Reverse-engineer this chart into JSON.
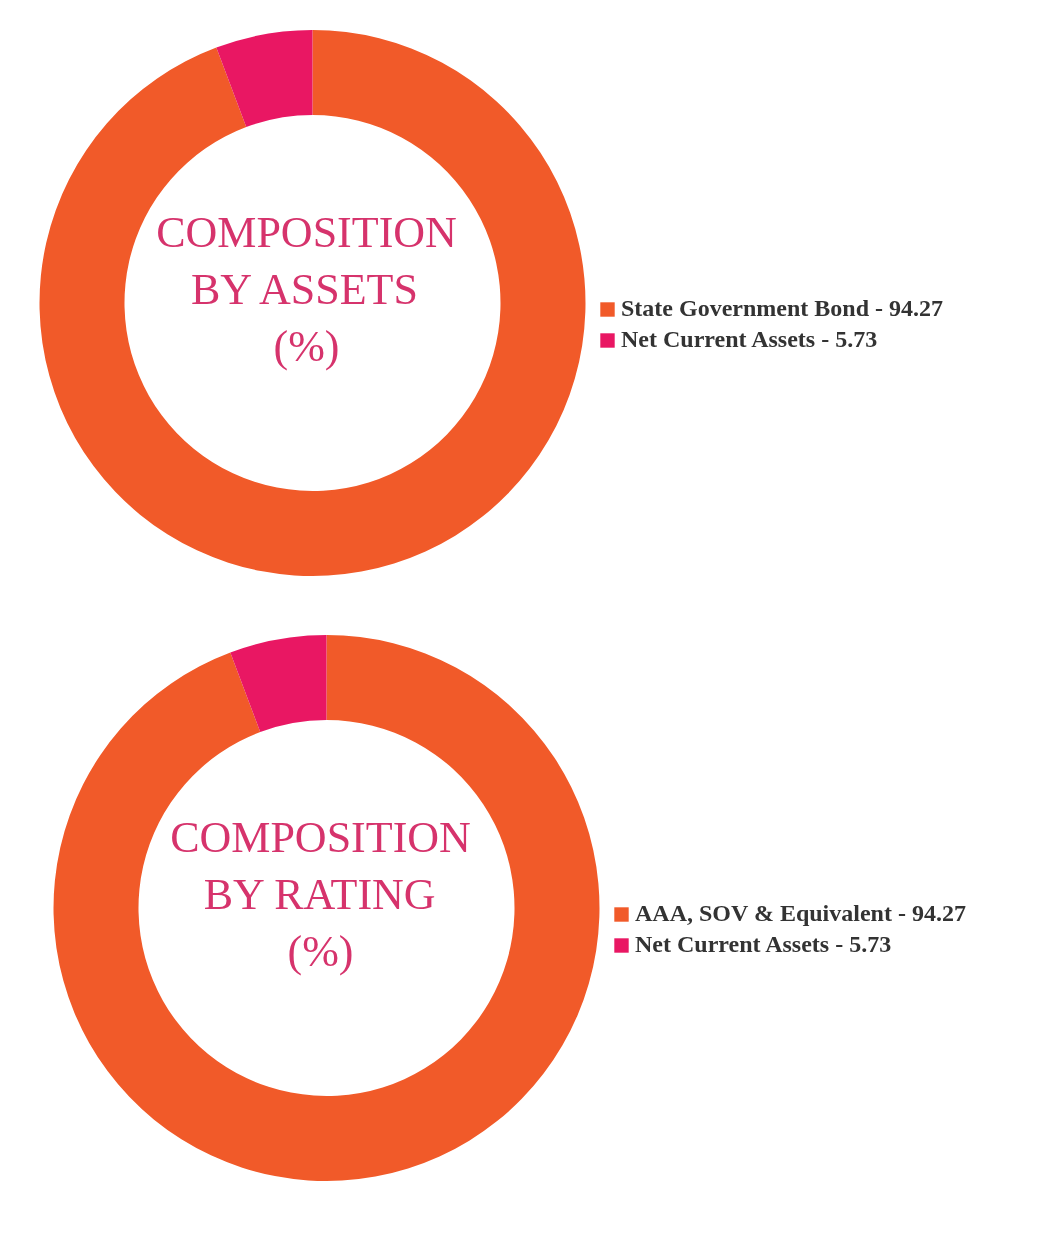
{
  "chart_data": [
    {
      "type": "donut",
      "title": "COMPOSITION\nBY ASSETS\n(%)",
      "categories": [
        "State Government Bond - 94.27",
        "Net Current Assets - 5.73"
      ],
      "values": [
        94.27,
        5.73
      ],
      "colors": [
        "#f15a29",
        "#e91763"
      ],
      "legend": "right"
    },
    {
      "type": "donut",
      "title": "COMPOSITION\nBY RATING\n(%)",
      "categories": [
        "AAA, SOV & Equivalent - 94.27",
        "Net Current Assets - 5.73"
      ],
      "values": [
        94.27,
        5.73
      ],
      "colors": [
        "#f15a29",
        "#e91763"
      ],
      "legend": "right"
    }
  ]
}
